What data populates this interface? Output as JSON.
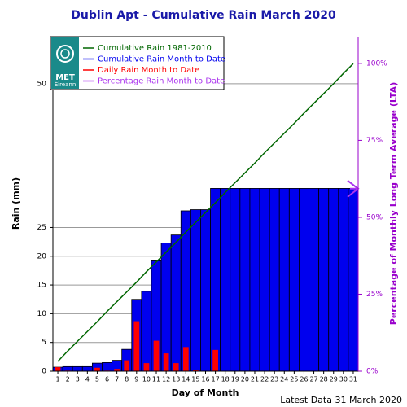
{
  "chart_data": {
    "type": "bar",
    "title": "Dublin Apt - Cumulative Rain March   2020",
    "x_label": "Day of Month",
    "y_label": "Rain (mm)",
    "y2_label": "Percentage of Monthly Long Term Average (LTA)",
    "footer": "Latest Data 31 March 2020",
    "logo": [
      "MET",
      "Éireann"
    ],
    "categories": [
      "1",
      "2",
      "3",
      "4",
      "5",
      "6",
      "7",
      "8",
      "9",
      "10",
      "11",
      "12",
      "13",
      "14",
      "15",
      "16",
      "17",
      "18",
      "19",
      "20",
      "21",
      "22",
      "23",
      "24",
      "25",
      "26",
      "27",
      "28",
      "29",
      "30",
      "31"
    ],
    "ylim": [
      0,
      58.2
    ],
    "yticks": [
      0,
      5,
      10,
      15,
      20,
      25,
      50
    ],
    "y2lim": [
      0,
      108.7
    ],
    "y2ticks": [
      {
        "value": 0,
        "label": "0%"
      },
      {
        "value": 25,
        "label": "25%"
      },
      {
        "value": 50,
        "label": "50%"
      },
      {
        "value": 75,
        "label": "75%"
      },
      {
        "value": 100,
        "label": "100%"
      }
    ],
    "grid": true,
    "series": [
      {
        "name": "Cumulative Rain 1981-2010",
        "color": "#006600",
        "kind": "line",
        "values": [
          1.7,
          3.5,
          5.2,
          6.9,
          8.6,
          10.4,
          12.1,
          13.8,
          15.5,
          17.3,
          19.0,
          20.7,
          22.4,
          24.2,
          25.9,
          27.6,
          29.3,
          31.1,
          32.8,
          34.5,
          36.2,
          38.0,
          39.7,
          41.4,
          43.1,
          44.9,
          46.6,
          48.3,
          50.0,
          51.8,
          53.5
        ]
      },
      {
        "name": "Cumulative Rain Month to Date",
        "color": "#0000ee",
        "kind": "bar",
        "values": [
          0.7,
          0.8,
          0.8,
          0.8,
          1.4,
          1.5,
          1.9,
          3.8,
          12.5,
          13.9,
          19.2,
          22.3,
          23.7,
          27.9,
          28.1,
          28.1,
          31.8,
          31.8,
          31.8,
          31.8,
          31.8,
          31.8,
          31.8,
          31.8,
          31.8,
          31.8,
          31.8,
          31.8,
          31.8,
          31.8,
          31.8
        ]
      },
      {
        "name": "Daily Rain Month to Date",
        "color": "#ff0000",
        "kind": "narrow",
        "values": [
          0.7,
          0.1,
          0,
          0,
          0.6,
          0.1,
          0.4,
          1.9,
          8.7,
          1.4,
          5.3,
          3.1,
          1.4,
          4.2,
          0.2,
          0,
          3.7,
          0,
          0,
          0,
          0,
          0,
          0,
          0,
          0,
          0,
          0,
          0,
          0,
          0,
          0
        ]
      },
      {
        "name": "Percentage Rain Month to Date",
        "color": "#aa33ee",
        "kind": "arrow",
        "axis": "y2",
        "value": 59.3
      }
    ]
  }
}
